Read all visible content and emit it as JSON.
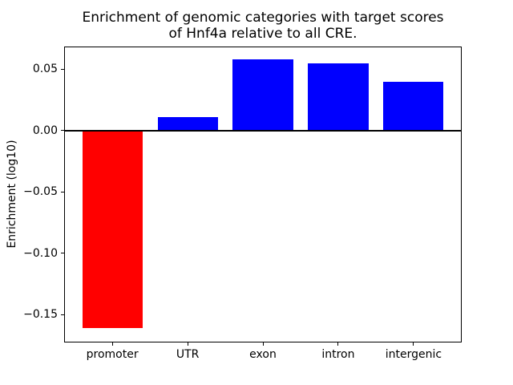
{
  "chart_data": {
    "type": "bar",
    "title": "Enrichment of genomic categories with target scores\nof Hnf4a relative to all CRE.",
    "title_lines": [
      "Enrichment of genomic categories with target scores",
      "of Hnf4a relative to all CRE."
    ],
    "xlabel": "",
    "ylabel": "Enrichment (log10)",
    "categories": [
      "promoter",
      "UTR",
      "exon",
      "intron",
      "intergenic"
    ],
    "values": [
      -0.161,
      0.011,
      0.058,
      0.055,
      0.04
    ],
    "bar_colors": [
      "#ff0000",
      "#0000ff",
      "#0000ff",
      "#0000ff",
      "#0000ff"
    ],
    "colors": {
      "negative_bar": "#ff0000",
      "positive_bar": "#0000ff",
      "axis": "#000000"
    },
    "yticks": [
      0.05,
      0.0,
      -0.05,
      -0.1,
      -0.15
    ],
    "ytick_labels": [
      "0.05",
      "0.00",
      "−0.05",
      "−0.10",
      "−0.15"
    ],
    "ylim": [
      -0.1728,
      0.0688
    ],
    "xlim": [
      -0.64,
      4.64
    ],
    "bar_width": 0.8,
    "zero_line": true,
    "grid": false,
    "legend": "none"
  }
}
